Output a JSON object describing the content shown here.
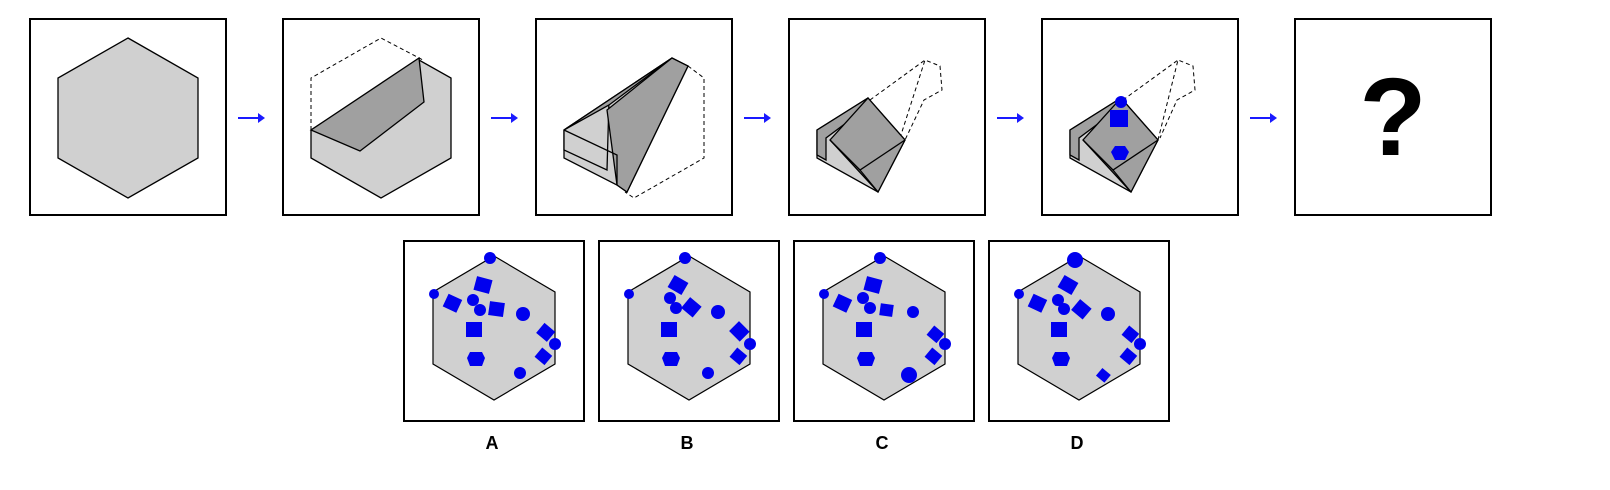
{
  "question_mark": "?",
  "options": [
    {
      "label": "A"
    },
    {
      "label": "B"
    },
    {
      "label": "C"
    },
    {
      "label": "D"
    }
  ],
  "colors": {
    "paper": "#d0d0d0",
    "fold": "#a0a0a0",
    "stroke": "#000000",
    "mark": "#0000ee",
    "arrow": "#1a1aff"
  }
}
